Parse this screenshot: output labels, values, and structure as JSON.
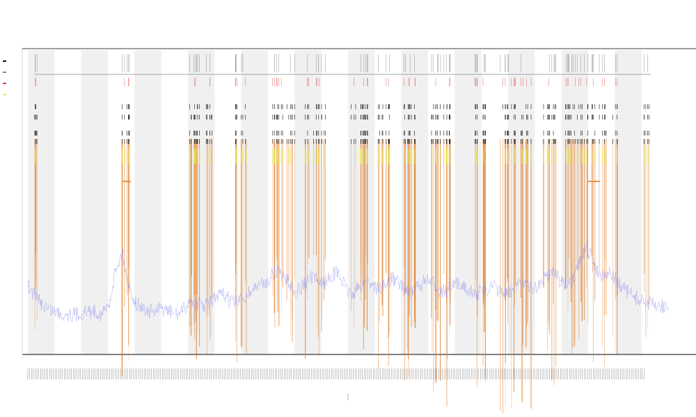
{
  "chart_data": {
    "type": "line",
    "title": "",
    "subtitle_lines": [
      "",
      ""
    ],
    "xlabel": "",
    "ylabel": "",
    "grid": false,
    "legend": {
      "placement": "top-left",
      "entries": [
        "",
        "",
        "",
        ""
      ]
    },
    "band_count": 24,
    "tick_count": 340,
    "colors": {
      "trace": "#8c8cf0",
      "event": "#e0781e",
      "marker": "#111111",
      "highlight": "#e9e94a",
      "alert": "#e03a3a",
      "band": "#f0f0f0",
      "axis": "#333333"
    },
    "series": [
      {
        "name": "",
        "values": [
          0.12,
          0.09,
          0.06,
          0.04,
          0.03,
          0.02,
          0.02,
          0.02,
          0.02,
          0.03,
          0.03,
          0.02,
          0.05,
          0.18,
          0.24,
          0.12,
          0.06,
          0.04,
          0.03,
          0.03,
          0.04,
          0.03,
          0.02,
          0.03,
          0.07,
          0.06,
          0.05,
          0.06,
          0.08,
          0.09,
          0.07,
          0.06,
          0.08,
          0.1,
          0.12,
          0.13,
          0.15,
          0.18,
          0.16,
          0.12,
          0.1,
          0.13,
          0.15,
          0.14,
          0.13,
          0.16,
          0.17,
          0.12,
          0.09,
          0.11,
          0.14,
          0.13,
          0.11,
          0.12,
          0.15,
          0.13,
          0.11,
          0.1,
          0.12,
          0.14,
          0.13,
          0.11,
          0.1,
          0.12,
          0.13,
          0.12,
          0.09,
          0.1,
          0.11,
          0.12,
          0.1,
          0.09,
          0.11,
          0.14,
          0.12,
          0.11,
          0.13,
          0.16,
          0.18,
          0.14,
          0.12,
          0.14,
          0.22,
          0.26,
          0.2,
          0.16,
          0.17,
          0.15,
          0.12,
          0.1,
          0.08,
          0.07,
          0.06,
          0.05,
          0.05,
          0.04
        ]
      }
    ]
  }
}
